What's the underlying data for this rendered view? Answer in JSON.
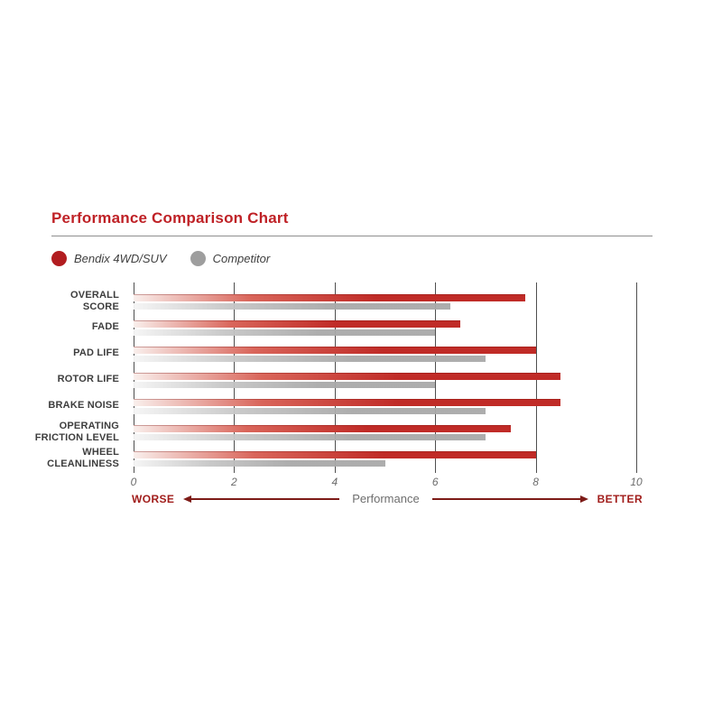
{
  "page": {
    "title": "Performance Comparison Chart"
  },
  "legend": {
    "items": [
      {
        "label": "Bendix 4WD/SUV",
        "color": "#b21d20"
      },
      {
        "label": "Competitor",
        "color": "#9e9e9e"
      }
    ]
  },
  "axis_footer": {
    "worse": "WORSE",
    "label": "Performance",
    "better": "BETTER"
  },
  "chart_data": {
    "type": "bar",
    "orientation": "horizontal",
    "title": "Performance Comparison Chart",
    "categories": [
      "OVERALL SCORE",
      "FADE",
      "PAD LIFE",
      "ROTOR LIFE",
      "BRAKE NOISE",
      "OPERATING FRICTION LEVEL",
      "WHEEL CLEANLINESS"
    ],
    "series": [
      {
        "name": "Bendix 4WD/SUV",
        "color": "#c02b27",
        "values": [
          7.8,
          6.5,
          8.0,
          8.5,
          8.5,
          7.5,
          8.0
        ]
      },
      {
        "name": "Competitor",
        "color": "#a9a9a9",
        "values": [
          6.3,
          6.0,
          7.0,
          6.0,
          7.0,
          7.0,
          5.0
        ]
      }
    ],
    "xlabel": "Performance",
    "xlim": [
      0,
      10
    ],
    "xticks": [
      0,
      2,
      4,
      6,
      8,
      10
    ],
    "grid": "vertical",
    "legend_position": "top-left",
    "axis_direction_labels": {
      "low_end": "WORSE",
      "high_end": "BETTER"
    }
  },
  "colors": {
    "title_red": "#bf2126",
    "bar_red": "#c02b27",
    "bar_gray": "#a9a9a9",
    "gridline": "#4f4f4f",
    "arrow_red": "#7d1b17"
  }
}
